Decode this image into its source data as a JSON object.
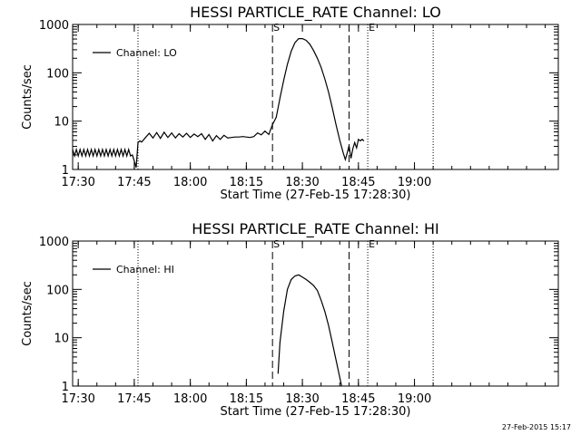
{
  "footer": {
    "timestamp": "27-Feb-2015 15:17"
  },
  "chart_data": [
    {
      "type": "line",
      "title": "HESSI PARTICLE_RATE Channel: LO",
      "xlabel": "Start Time (27-Feb-15 17:28:30)",
      "ylabel": "Counts/sec",
      "yscale": "log",
      "xlim": [
        "17:28:30",
        "19:38:30"
      ],
      "ylim": [
        1,
        1000
      ],
      "x_ticks": [
        "17:30",
        "17:45",
        "18:00",
        "18:15",
        "18:30",
        "18:45",
        "19:00"
      ],
      "y_ticks": [
        "1",
        "10",
        "100",
        "1000"
      ],
      "legend": {
        "position": "top-left",
        "entries": [
          "Channel: LO"
        ]
      },
      "markers": [
        {
          "time": "17:46:00",
          "style": "dotted",
          "label": ""
        },
        {
          "time": "18:22:00",
          "style": "dashed",
          "label": "S"
        },
        {
          "time": "18:42:30",
          "style": "dashed",
          "label": ""
        },
        {
          "time": "18:47:30",
          "style": "dotted",
          "label": "E"
        },
        {
          "time": "19:05:00",
          "style": "dotted",
          "label": ""
        }
      ],
      "series": [
        {
          "name": "Channel: LO",
          "x": [
            "17:28:30",
            "17:29:00",
            "17:29:30",
            "17:30:00",
            "17:30:30",
            "17:31:00",
            "17:31:30",
            "17:32:00",
            "17:32:30",
            "17:33:00",
            "17:33:30",
            "17:34:00",
            "17:34:30",
            "17:35:00",
            "17:35:30",
            "17:36:00",
            "17:36:30",
            "17:37:00",
            "17:37:30",
            "17:38:00",
            "17:38:30",
            "17:39:00",
            "17:39:30",
            "17:40:00",
            "17:40:30",
            "17:41:00",
            "17:41:30",
            "17:42:00",
            "17:42:30",
            "17:43:00",
            "17:43:30",
            "17:44:00",
            "17:44:30",
            "17:45:00",
            "17:45:30",
            "17:46:00",
            "17:46:30",
            "17:47:00",
            "17:48:00",
            "17:49:00",
            "17:50:00",
            "17:51:00",
            "17:52:00",
            "17:53:00",
            "17:54:00",
            "17:55:00",
            "17:56:00",
            "17:57:00",
            "17:58:00",
            "17:59:00",
            "18:00:00",
            "18:01:00",
            "18:02:00",
            "18:03:00",
            "18:04:00",
            "18:05:00",
            "18:06:00",
            "18:07:00",
            "18:08:00",
            "18:09:00",
            "18:10:00",
            "18:11:00",
            "18:12:00",
            "18:13:00",
            "18:14:00",
            "18:15:00",
            "18:16:00",
            "18:17:00",
            "18:18:00",
            "18:19:00",
            "18:20:00",
            "18:21:00",
            "18:22:00",
            "18:23:00",
            "18:24:00",
            "18:25:00",
            "18:26:00",
            "18:27:00",
            "18:28:00",
            "18:29:00",
            "18:30:00",
            "18:31:00",
            "18:32:00",
            "18:33:00",
            "18:34:00",
            "18:35:00",
            "18:36:00",
            "18:37:00",
            "18:38:00",
            "18:39:00",
            "18:40:00",
            "18:41:00",
            "18:41:30",
            "18:42:00",
            "18:42:30",
            "18:43:00",
            "18:43:30",
            "18:44:00",
            "18:44:30",
            "18:45:00",
            "18:45:30",
            "18:46:00",
            "18:46:30"
          ],
          "y": [
            2.6,
            1.9,
            2.6,
            1.9,
            2.6,
            1.9,
            2.6,
            1.9,
            2.6,
            1.9,
            2.6,
            1.9,
            2.6,
            1.9,
            2.6,
            1.9,
            2.6,
            1.9,
            2.6,
            1.9,
            2.6,
            1.9,
            2.6,
            1.9,
            2.6,
            1.9,
            2.6,
            1.9,
            2.6,
            1.9,
            2.6,
            1.9,
            2.0,
            1.5,
            1.1,
            3.6,
            3.9,
            3.7,
            4.6,
            5.6,
            4.5,
            5.8,
            4.4,
            5.9,
            4.6,
            5.7,
            4.5,
            5.5,
            4.7,
            5.6,
            4.6,
            5.4,
            4.8,
            5.5,
            4.2,
            5.3,
            3.9,
            5.0,
            4.2,
            5.1,
            4.5,
            4.6,
            4.7,
            4.7,
            4.8,
            4.7,
            4.6,
            4.8,
            5.7,
            5.2,
            6.2,
            5.3,
            8.5,
            12,
            30,
            70,
            150,
            280,
            420,
            510,
            510,
            470,
            390,
            290,
            200,
            130,
            75,
            40,
            19,
            8.5,
            4.0,
            2.1,
            1.6,
            2.2,
            3.1,
            1.7,
            2.7,
            3.6,
            2.8,
            4.2,
            3.9,
            4.2,
            3.9
          ]
        }
      ]
    },
    {
      "type": "line",
      "title": "HESSI PARTICLE_RATE Channel: HI",
      "xlabel": "Start Time (27-Feb-15 17:28:30)",
      "ylabel": "Counts/sec",
      "yscale": "log",
      "xlim": [
        "17:28:30",
        "19:38:30"
      ],
      "ylim": [
        1,
        1000
      ],
      "x_ticks": [
        "17:30",
        "17:45",
        "18:00",
        "18:15",
        "18:30",
        "18:45",
        "19:00"
      ],
      "y_ticks": [
        "1",
        "10",
        "100",
        "1000"
      ],
      "legend": {
        "position": "top-left",
        "entries": [
          "Channel: HI"
        ]
      },
      "markers": [
        {
          "time": "17:46:00",
          "style": "dotted",
          "label": ""
        },
        {
          "time": "18:22:00",
          "style": "dashed",
          "label": "S"
        },
        {
          "time": "18:42:30",
          "style": "dashed",
          "label": ""
        },
        {
          "time": "18:47:30",
          "style": "dotted",
          "label": "E"
        },
        {
          "time": "19:05:00",
          "style": "dotted",
          "label": ""
        }
      ],
      "series": [
        {
          "name": "Channel: HI",
          "x": [
            "18:23:30",
            "18:24:00",
            "18:25:00",
            "18:26:00",
            "18:27:00",
            "18:28:00",
            "18:29:00",
            "18:30:00",
            "18:31:00",
            "18:32:00",
            "18:33:00",
            "18:34:00",
            "18:35:00",
            "18:36:00",
            "18:37:00",
            "18:38:00",
            "18:39:00",
            "18:40:00",
            "18:40:30"
          ],
          "y": [
            1.8,
            8,
            35,
            100,
            160,
            190,
            200,
            180,
            160,
            140,
            120,
            95,
            60,
            35,
            18,
            8,
            3.5,
            1.5,
            1.0
          ]
        }
      ]
    }
  ]
}
